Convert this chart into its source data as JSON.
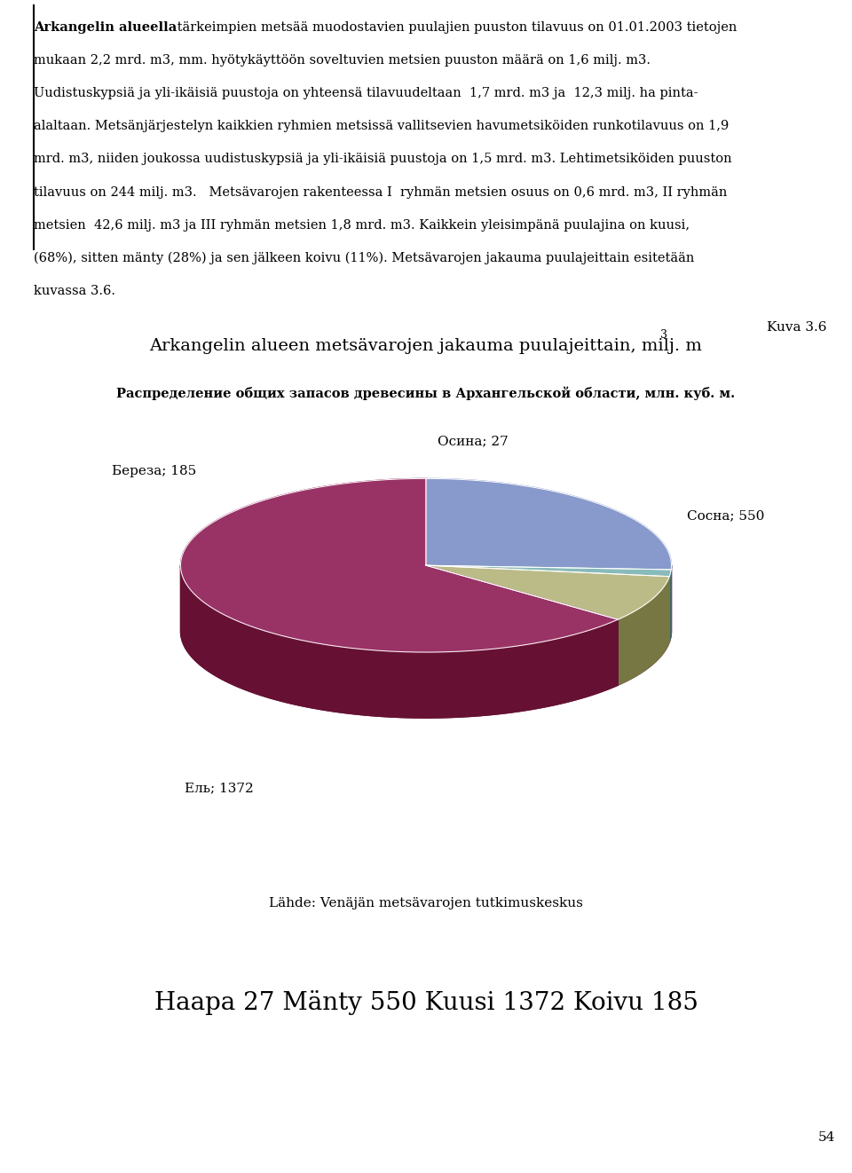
{
  "title_finnish": "Arkangelin alueen metsävarojen jakauma puulajeittain, milj. m",
  "title_russian": "Распределение общих запасов древесины в Архангельской области, млн. куб. м.",
  "source_text": "Lähde: Venäjän metsävarojen tutkimuskeskus",
  "summary_text": "Haapa 27 Mänty 550 Kuusi 1372 Koivu 185",
  "kuva_label": "Kuva 3.6",
  "page_number": "54",
  "vals": [
    550,
    27,
    185,
    1372
  ],
  "clrs": [
    "#8899cc",
    "#88bbbb",
    "#bbbb88",
    "#993366"
  ],
  "dark_clrs": [
    "#445588",
    "#446666",
    "#777744",
    "#661133"
  ],
  "lbls": [
    "Сосна; 550",
    "Осина; 27",
    "Береза; 185",
    "Ель; 1372"
  ],
  "background_color": "#ffffff"
}
